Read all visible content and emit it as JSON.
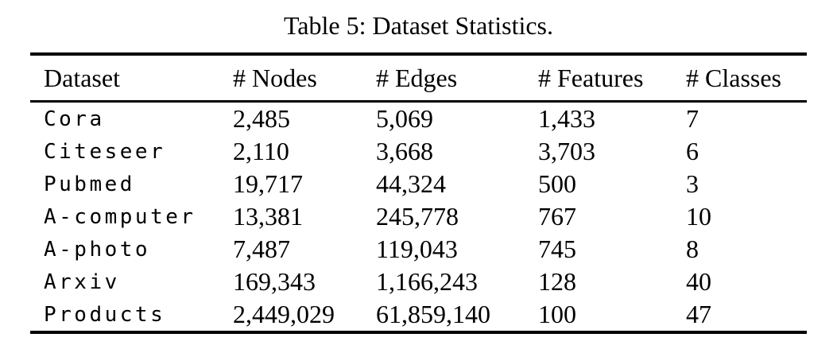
{
  "caption": "Table 5: Dataset Statistics.",
  "table": {
    "columns": [
      "Dataset",
      "# Nodes",
      "# Edges",
      "# Features",
      "# Classes"
    ],
    "rows": [
      [
        "Cora",
        "2,485",
        "5,069",
        "1,433",
        "7"
      ],
      [
        "Citeseer",
        "2,110",
        "3,668",
        "3,703",
        "6"
      ],
      [
        "Pubmed",
        "19,717",
        "44,324",
        "500",
        "3"
      ],
      [
        "A-computer",
        "13,381",
        "245,778",
        "767",
        "10"
      ],
      [
        "A-photo",
        "7,487",
        "119,043",
        "745",
        "8"
      ],
      [
        "Arxiv",
        "169,343",
        "1,166,243",
        "128",
        "40"
      ],
      [
        "Products",
        "2,449,029",
        "61,859,140",
        "100",
        "47"
      ]
    ]
  }
}
